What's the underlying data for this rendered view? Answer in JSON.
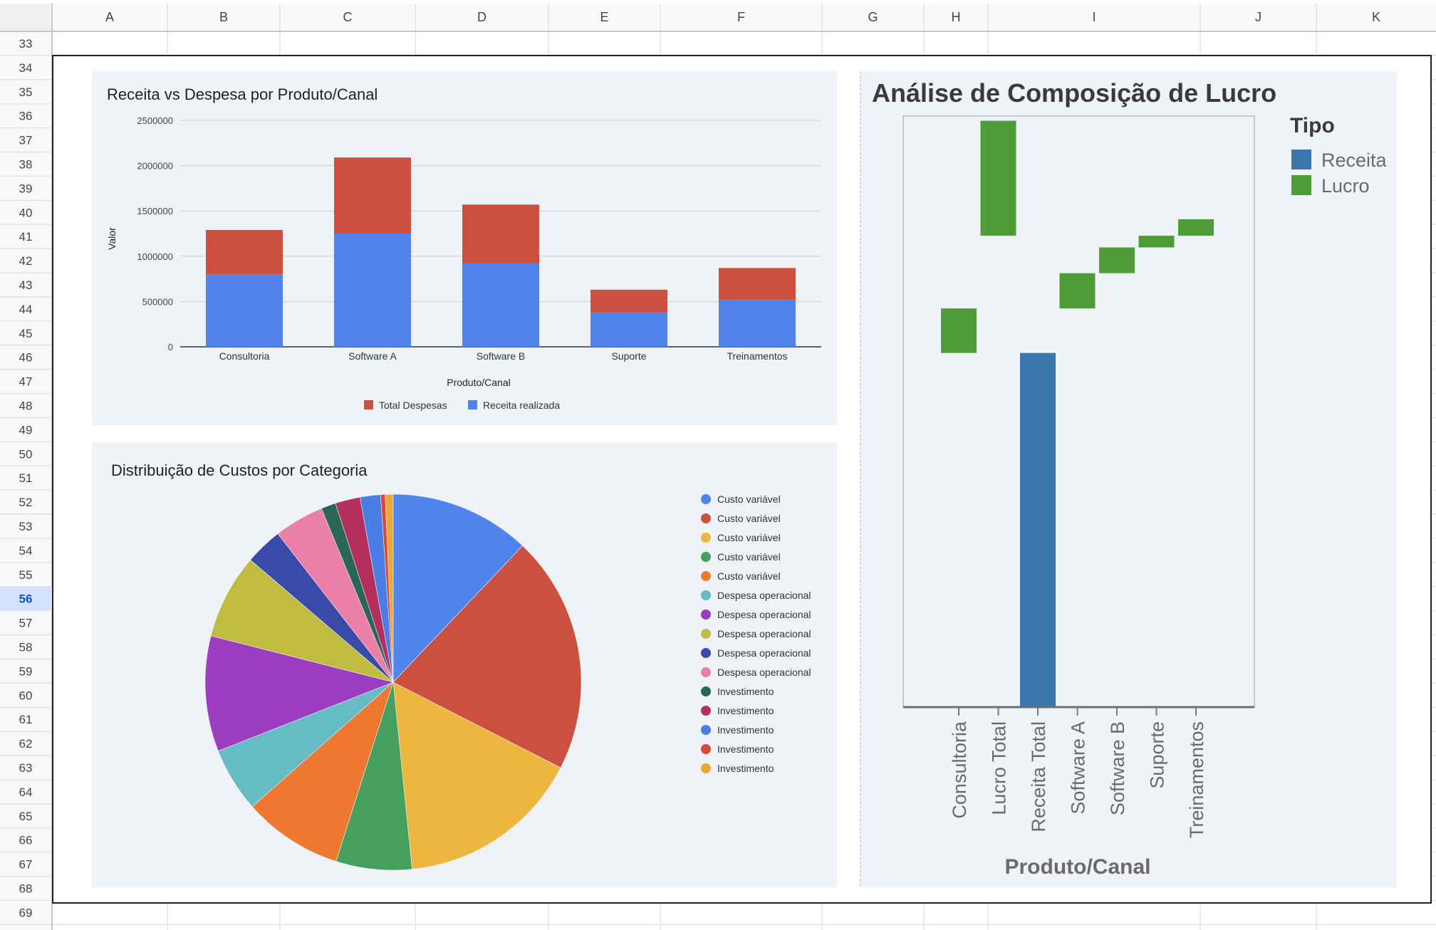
{
  "sheet": {
    "columns": [
      "A",
      "B",
      "C",
      "D",
      "E",
      "F",
      "G",
      "H",
      "I",
      "J",
      "K"
    ],
    "rows": [
      "33",
      "34",
      "35",
      "36",
      "37",
      "38",
      "39",
      "40",
      "41",
      "42",
      "43",
      "44",
      "45",
      "46",
      "47",
      "48",
      "49",
      "50",
      "51",
      "52",
      "53",
      "54",
      "55",
      "56",
      "57",
      "58",
      "59",
      "60",
      "61",
      "62",
      "63",
      "64",
      "65",
      "66",
      "67",
      "68",
      "69"
    ],
    "selected_row": "56",
    "colors": {
      "grid": "#e2e2e2",
      "header_bg": "#f8f9fa",
      "header_text": "#444444",
      "selected_bg": "#d3e3fd",
      "selected_text": "#0b57d0"
    }
  },
  "chart_data": [
    {
      "type": "bar",
      "stacked": true,
      "title": "Receita vs Despesa por Produto/Canal",
      "xlabel": "Produto/Canal",
      "ylabel": "Valor",
      "categories": [
        "Consultoria",
        "Software A",
        "Software B",
        "Suporte",
        "Treinamentos"
      ],
      "series": [
        {
          "name": "Receita realizada",
          "color": "#5083ec",
          "values": [
            800000,
            1250000,
            920000,
            380000,
            520000
          ]
        },
        {
          "name": "Total Despesas",
          "color": "#cc5040",
          "values": [
            490000,
            840000,
            650000,
            250000,
            350000
          ]
        }
      ],
      "legend_order": [
        "Total Despesas",
        "Receita realizada"
      ],
      "ylim": [
        0,
        2500000
      ],
      "yticks": [
        "0",
        "500000",
        "1000000",
        "1500000",
        "2000000",
        "2500000"
      ],
      "legend_position": "bottom",
      "grid": true,
      "background": "#eff2f7"
    },
    {
      "type": "pie",
      "title": "Distribuição de Custos por Categoria",
      "labels": [
        "Custo variável",
        "Custo variável",
        "Custo variável",
        "Custo variável",
        "Custo variável",
        "Despesa operacional",
        "Despesa operacional",
        "Despesa operacional",
        "Despesa operacional",
        "Despesa operacional",
        "Investimento",
        "Investimento",
        "Investimento",
        "Investimento",
        "Investimento"
      ],
      "values": [
        12.4,
        21.0,
        16.3,
        6.7,
        8.8,
        5.7,
        10.2,
        7.5,
        3.3,
        4.4,
        1.3,
        2.2,
        1.8,
        0.4,
        0.7
      ],
      "colors": [
        "#5083ec",
        "#cc5040",
        "#ecb63f",
        "#45a05d",
        "#ee7832",
        "#66bcc4",
        "#9c3cc0",
        "#c0bc42",
        "#3a4aa8",
        "#ea7fa8",
        "#28665a",
        "#b42f5c",
        "#4a7ee6",
        "#d84a38",
        "#e8a83a"
      ],
      "legend_position": "right",
      "background": "#eff2f7"
    },
    {
      "type": "bar",
      "subtype": "waterfall",
      "title": "Análise de Composição de Lucro",
      "xlabel": "Produto/Canal",
      "ylabel": "",
      "categories": [
        "Consultoria",
        "Lucro Total",
        "Receita Total",
        "Software A",
        "Software B",
        "Suporte",
        "Treinamentos"
      ],
      "legend_title": "Tipo",
      "legend": [
        {
          "name": "Receita",
          "color": "#3a76ae"
        },
        {
          "name": "Lucro",
          "color": "#4f9c3a"
        }
      ],
      "ylim": [
        0,
        2520000
      ],
      "bars": [
        {
          "category": "Consultoria",
          "type": "Lucro",
          "low": 1510000,
          "high": 1700000
        },
        {
          "category": "Lucro Total",
          "type": "Lucro",
          "low": 2010000,
          "high": 2500000
        },
        {
          "category": "Receita Total",
          "type": "Receita",
          "low": 0,
          "high": 1510000
        },
        {
          "category": "Software A",
          "type": "Lucro",
          "low": 1700000,
          "high": 1850000
        },
        {
          "category": "Software B",
          "type": "Lucro",
          "low": 1850000,
          "high": 1960000
        },
        {
          "category": "Suporte",
          "type": "Lucro",
          "low": 1960000,
          "high": 2010000
        },
        {
          "category": "Treinamentos",
          "type": "Lucro",
          "low": 2010000,
          "high": 2080000
        }
      ],
      "legend_position": "right",
      "grid": false,
      "background": "#eff2f7"
    }
  ]
}
